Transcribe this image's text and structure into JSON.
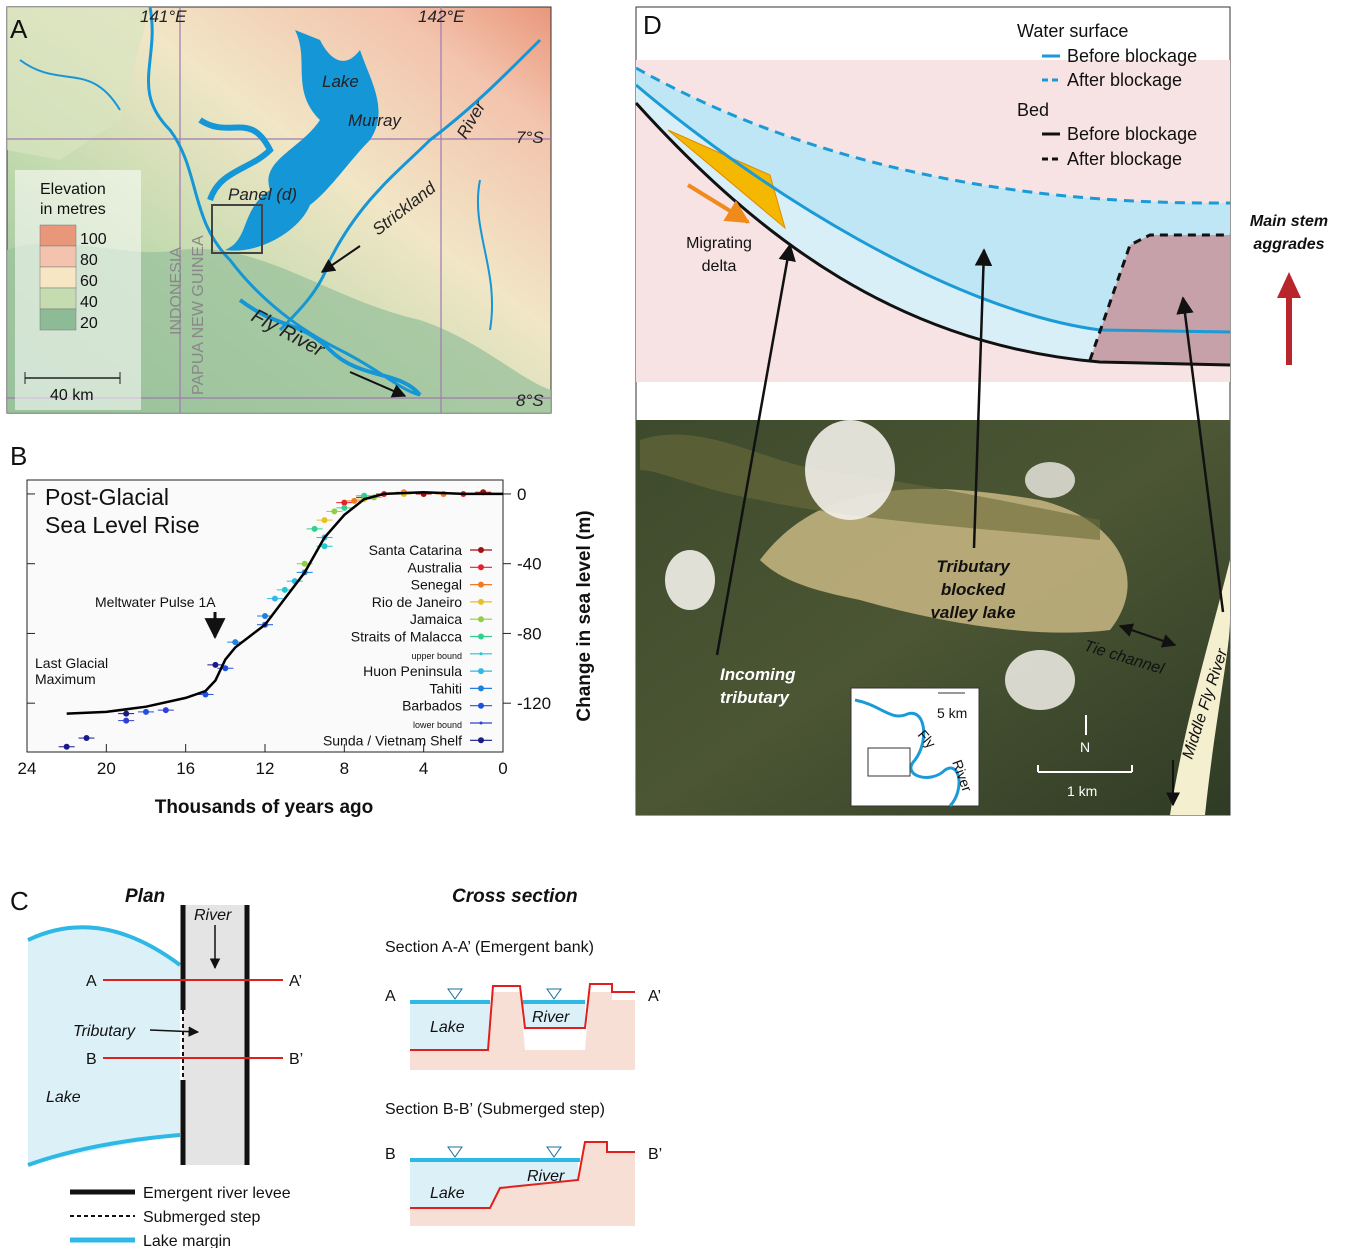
{
  "panel_a": {
    "label": "A",
    "lon_labels": [
      "141°E",
      "142°E"
    ],
    "lat_labels": [
      "7°S",
      "8°S"
    ],
    "places": {
      "lake": "Lake",
      "murray": "Murray",
      "strickland": "Strickland",
      "river": "River",
      "panel_d": "Panel (d)",
      "indonesia": "INDONESIA",
      "png": "PAPUA NEW GUINEA",
      "fly_river": "Fly River"
    },
    "legend": {
      "title": [
        "Elevation",
        "in metres"
      ],
      "levels": [
        {
          "label": 100,
          "color": "#e9977b"
        },
        {
          "label": 80,
          "color": "#f3c3ad"
        },
        {
          "label": 60,
          "color": "#f6e6c4"
        },
        {
          "label": 40,
          "color": "#c5dbb0"
        },
        {
          "label": 20,
          "color": "#8dbb95"
        }
      ]
    },
    "scale": "40 km"
  },
  "chart_data": {
    "type": "scatter",
    "panel_label": "B",
    "title": [
      "Post-Glacial",
      "Sea Level Rise"
    ],
    "x_label": "Thousands of years ago",
    "y_label": "Change in sea level (m)",
    "xlim": [
      24,
      0
    ],
    "ylim": [
      -148,
      8
    ],
    "xticks": [
      24,
      20,
      16,
      12,
      8,
      4,
      0
    ],
    "yticks": [
      0,
      -40,
      -80,
      -120
    ],
    "annotations": {
      "pulse": "Meltwater Pulse 1A",
      "lgm": [
        "Last Glacial",
        "Maximum"
      ]
    },
    "curve": {
      "color": "#000000",
      "x": [
        22,
        20,
        18,
        16,
        15,
        14.5,
        14,
        13.5,
        12,
        11,
        10,
        9,
        8,
        7,
        6,
        4,
        2,
        0
      ],
      "y": [
        -126,
        -125,
        -122,
        -117,
        -113,
        -107,
        -95,
        -88,
        -75,
        -60,
        -45,
        -25,
        -12,
        -3,
        0,
        1,
        0,
        0
      ]
    },
    "series": [
      {
        "name": "Santa Catarina",
        "color": "#a01010",
        "x": [
          7,
          4,
          1
        ],
        "y": [
          -2,
          0,
          1
        ]
      },
      {
        "name": "Australia",
        "color": "#e8202a",
        "x": [
          8,
          6,
          2
        ],
        "y": [
          -5,
          0,
          0
        ]
      },
      {
        "name": "Senegal",
        "color": "#f07a20",
        "x": [
          7.5,
          5,
          3
        ],
        "y": [
          -4,
          1,
          0
        ]
      },
      {
        "name": "Rio de Janeiro",
        "color": "#e8c020",
        "x": [
          9,
          7,
          5
        ],
        "y": [
          -15,
          -3,
          0
        ]
      },
      {
        "name": "Jamaica",
        "color": "#8fd040",
        "x": [
          10,
          8.5,
          6.5
        ],
        "y": [
          -40,
          -10,
          -2
        ]
      },
      {
        "name": "Straits of Malacca",
        "color": "#30d090",
        "x": [
          9.5,
          8,
          7
        ],
        "y": [
          -20,
          -8,
          -1
        ]
      },
      {
        "name": "upper bound",
        "color": "#20c8d0",
        "x": [
          11,
          9
        ],
        "y": [
          -55,
          -30
        ]
      },
      {
        "name": "Huon Peninsula",
        "color": "#30b8e8",
        "x": [
          11.5,
          10.5,
          9
        ],
        "y": [
          -60,
          -50,
          -25
        ]
      },
      {
        "name": "Tahiti",
        "color": "#2080e0",
        "x": [
          13.5,
          12,
          10
        ],
        "y": [
          -85,
          -70,
          -45
        ]
      },
      {
        "name": "Barbados",
        "color": "#2050e0",
        "x": [
          18,
          15,
          14,
          12
        ],
        "y": [
          -125,
          -115,
          -100,
          -75
        ]
      },
      {
        "name": "lower bound",
        "color": "#3040d0",
        "x": [
          19,
          17
        ],
        "y": [
          -130,
          -124
        ]
      },
      {
        "name": "Sunda / Vietnam Shelf",
        "color": "#1a1a8a",
        "x": [
          22,
          21,
          19,
          14.5
        ],
        "y": [
          -145,
          -140,
          -126,
          -98
        ]
      }
    ]
  },
  "panel_c": {
    "label": "C",
    "plan_title": "Plan",
    "section_title": "Cross section",
    "plan": {
      "river": "River",
      "a": "A",
      "a_prime": "A’",
      "tributary": "Tributary",
      "b": "B",
      "b_prime": "B’",
      "lake": "Lake"
    },
    "section_a": {
      "title": "Section A-A’ (Emergent bank)",
      "left": "A",
      "lake": "Lake",
      "river": "River",
      "right": "A’"
    },
    "section_b": {
      "title": "Section B-B’ (Submerged step)",
      "left": "B",
      "lake": "Lake",
      "river": "River",
      "right": "B’"
    },
    "legend": [
      "Emergent river levee",
      "Submerged step",
      "Lake margin"
    ]
  },
  "panel_d": {
    "label": "D",
    "legend": {
      "water": "Water surface",
      "water_before": "Before blockage",
      "water_after": "After blockage",
      "bed": "Bed",
      "bed_before": "Before blockage",
      "bed_after": "After blockage"
    },
    "main_stem": [
      "Main stem",
      "aggrades"
    ],
    "delta": [
      "Migrating",
      "delta"
    ],
    "lake": [
      "Tributary",
      "blocked",
      "valley lake"
    ],
    "incoming": [
      "Incoming",
      "tributary"
    ],
    "tie_channel": "Tie channel",
    "middle_fly": "Middle Fly River",
    "inset": {
      "scale": "5 km",
      "fly": "Fly",
      "river": "River"
    },
    "north": "N",
    "scale": "1 km"
  }
}
